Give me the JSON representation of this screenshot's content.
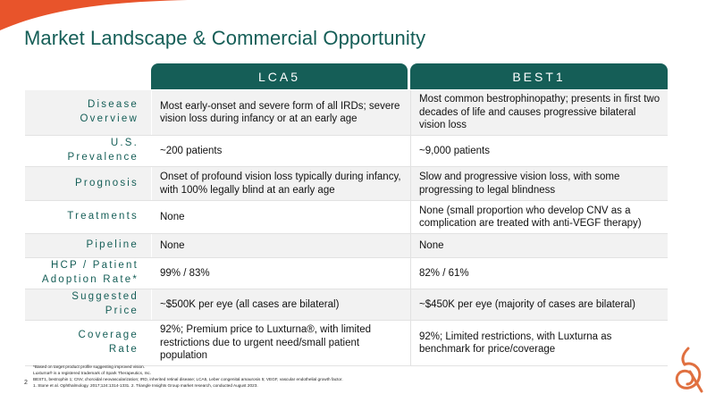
{
  "title": "Market Landscape & Commercial Opportunity",
  "columns": [
    "LCA5",
    "BEST1"
  ],
  "rows": [
    {
      "label": [
        "Disease",
        "Overview"
      ],
      "lca5": "Most early-onset and severe form of all IRDs; severe vision loss during infancy or at an early age",
      "best1": "Most common bestrophinopathy; presents in first two decades of life and causes progressive bilateral vision loss"
    },
    {
      "label": [
        "U.S.",
        "Prevalence"
      ],
      "lca5": "~200 patients",
      "best1": "~9,000 patients"
    },
    {
      "label": [
        "Prognosis"
      ],
      "lca5": "Onset of profound vision loss typically during infancy, with 100% legally blind at an early age",
      "best1": "Slow and progressive vision loss, with some progressing to legal blindness"
    },
    {
      "label": [
        "Treatments"
      ],
      "lca5": "None",
      "best1": "None (small proportion who develop CNV as a complication are treated with anti-VEGF therapy)"
    },
    {
      "label": [
        "Pipeline"
      ],
      "lca5": "None",
      "best1": "None"
    },
    {
      "label": [
        "HCP / Patient",
        "Adoption Rate*"
      ],
      "lca5": "99% / 83%",
      "best1": "82% / 61%"
    },
    {
      "label": [
        "Suggested",
        "Price"
      ],
      "lca5": "~$500K per eye (all cases are bilateral)",
      "best1": "~$450K per eye (majority of cases are bilateral)"
    },
    {
      "label": [
        "Coverage",
        "Rate"
      ],
      "lca5": "92%; Premium price to Luxturna®, with limited restrictions due to urgent need/small patient population",
      "best1": "92%; Limited restrictions, with Luxturna as benchmark for price/coverage"
    }
  ],
  "footnotes": [
    "*Based on target product profile suggesting improved vision.",
    "Luxturna® is a registered trademark of Spark Therapeutics, Inc.",
    "BEST1, bestrophin 1; CNV, choroidal neovascularization; IRD, inherited retinal disease; LCA5, Leber congenital amaurosis 5; VEGF, vascular endothelial growth factor.",
    "1. Stone et al. Ophthalmology. 2017;124:1314-1331. 2. Triangle Insights Group market research, conducted August 2023."
  ],
  "page_number": "2",
  "colors": {
    "accent": "#155e57",
    "swoosh": "#e8542b",
    "logo": "#e07040"
  }
}
